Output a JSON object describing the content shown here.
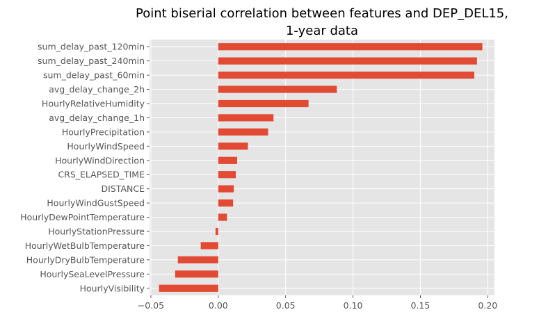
{
  "chart_data": {
    "type": "bar",
    "orientation": "horizontal",
    "title": "Point biserial correlation between features and DEP_DEL15,",
    "subtitle": "1-year data",
    "xlabel": "",
    "ylabel": "",
    "xlim": [
      -0.051,
      0.205
    ],
    "xticks": [
      -0.05,
      0.0,
      0.05,
      0.1,
      0.15,
      0.2
    ],
    "xtick_labels": [
      "−0.05",
      "0.00",
      "0.05",
      "0.10",
      "0.15",
      "0.20"
    ],
    "grid": true,
    "style": "ggplot",
    "bar_color": "#E24A33",
    "background_color": "#E5E5E5",
    "categories": [
      "sum_delay_past_120min",
      "sum_delay_past_240min",
      "sum_delay_past_60min",
      "avg_delay_change_2h",
      "HourlyRelativeHumidity",
      "avg_delay_change_1h",
      "HourlyPrecipitation",
      "HourlyWindSpeed",
      "HourlyWindDirection",
      "CRS_ELAPSED_TIME",
      "DISTANCE",
      "HourlyWindGustSpeed",
      "HourlyDewPointTemperature",
      "HourlyStationPressure",
      "HourlyWetBulbTemperature",
      "HourlyDryBulbTemperature",
      "HourlySeaLevelPressure",
      "HourlyVisibility"
    ],
    "values": [
      0.196,
      0.192,
      0.19,
      0.088,
      0.067,
      0.041,
      0.037,
      0.022,
      0.014,
      0.013,
      0.0115,
      0.011,
      0.0065,
      -0.002,
      -0.013,
      -0.03,
      -0.032,
      -0.044
    ]
  }
}
